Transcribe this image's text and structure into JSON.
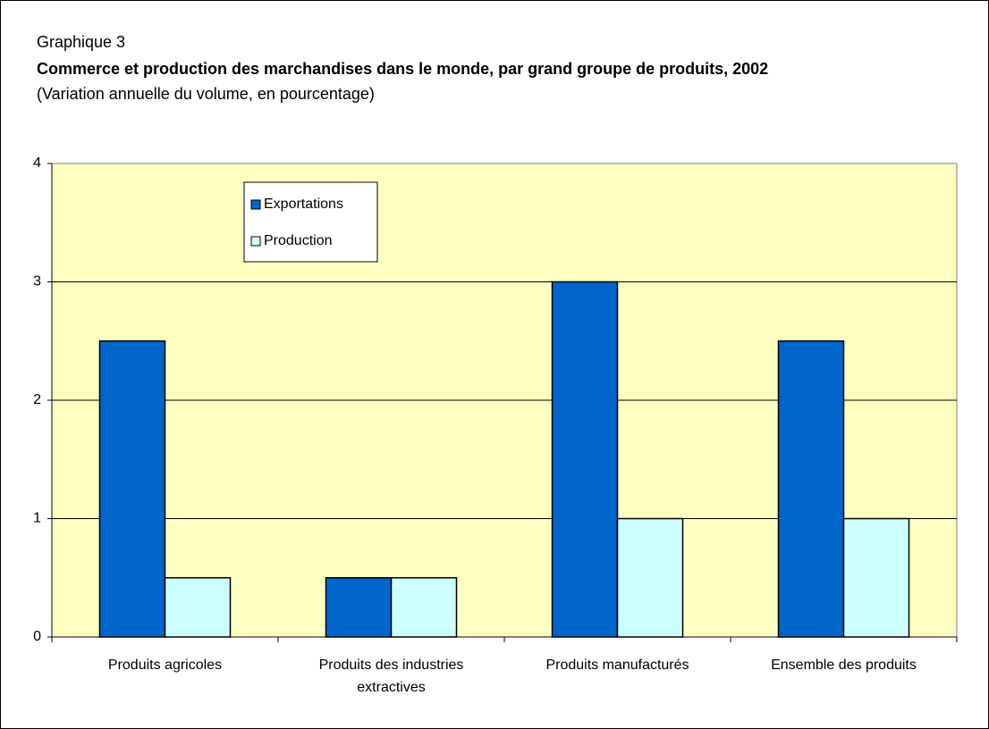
{
  "chart_data": {
    "type": "bar",
    "label": "Graphique 3",
    "title": "Commerce et production des marchandises dans le monde, par grand groupe de produits, 2002",
    "subtitle": "(Variation annuelle du volume, en pourcentage)",
    "categories": [
      "Produits agricoles",
      "Produits des industries extractives",
      "Produits manufacturés",
      "Ensemble des produits"
    ],
    "series": [
      {
        "name": "Exportations",
        "color": "#0066cc",
        "values": [
          2.5,
          0.5,
          3,
          2.5
        ]
      },
      {
        "name": "Production",
        "color": "#ccffff",
        "values": [
          0.5,
          0.5,
          1,
          1
        ]
      }
    ],
    "ylim": [
      0,
      4
    ],
    "yticks": [
      0,
      1,
      2,
      3,
      4
    ],
    "grid": true,
    "plot_background": "#ffffc0"
  }
}
